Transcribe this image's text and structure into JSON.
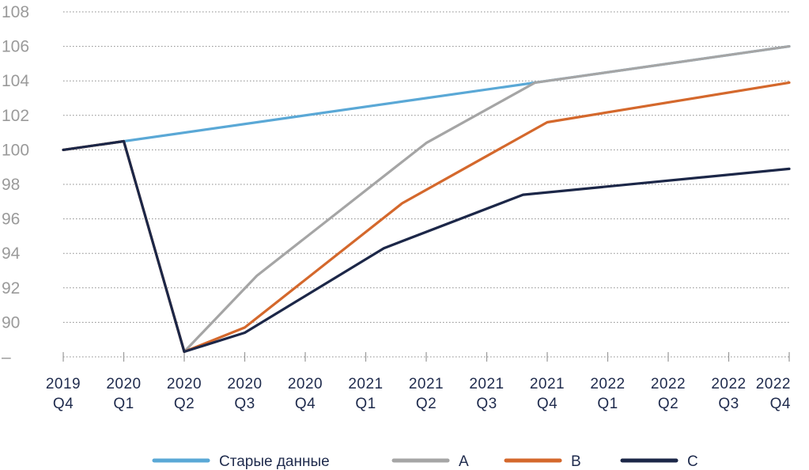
{
  "chart_data": {
    "type": "line",
    "title": "",
    "xlabel": "",
    "ylabel": "",
    "ylim": [
      88,
      108
    ],
    "y_ticks": [
      {
        "value": 108,
        "label": "108"
      },
      {
        "value": 106,
        "label": "106"
      },
      {
        "value": 104,
        "label": "104"
      },
      {
        "value": 102,
        "label": "102"
      },
      {
        "value": 100,
        "label": "100"
      },
      {
        "value": 98,
        "label": "98"
      },
      {
        "value": 96,
        "label": "96"
      },
      {
        "value": 94,
        "label": "94"
      },
      {
        "value": 92,
        "label": "92"
      },
      {
        "value": 90,
        "label": "90"
      },
      {
        "value": 88,
        "label": "–"
      }
    ],
    "categories": [
      {
        "year": "2019",
        "quarter": "Q4"
      },
      {
        "year": "2020",
        "quarter": "Q1"
      },
      {
        "year": "2020",
        "quarter": "Q2"
      },
      {
        "year": "2020",
        "quarter": "Q3"
      },
      {
        "year": "2020",
        "quarter": "Q4"
      },
      {
        "year": "2021",
        "quarter": "Q1"
      },
      {
        "year": "2021",
        "quarter": "Q2"
      },
      {
        "year": "2021",
        "quarter": "Q3"
      },
      {
        "year": "2021",
        "quarter": "Q4"
      },
      {
        "year": "2022",
        "quarter": "Q1"
      },
      {
        "year": "2022",
        "quarter": "Q2"
      },
      {
        "year": "2022",
        "quarter": "Q3"
      },
      {
        "year": "2022",
        "quarter": "Q4"
      }
    ],
    "grid": "horizontal dotted",
    "legend_position": "bottom",
    "series": [
      {
        "name": "Старые данные",
        "color": "#5aa8d6",
        "points": [
          [
            0,
            100
          ],
          [
            8,
            104
          ],
          [
            12,
            106
          ]
        ]
      },
      {
        "name": "A",
        "color": "#a5a5a5",
        "points": [
          [
            0,
            100
          ],
          [
            1,
            100.5
          ],
          [
            2,
            88.3
          ],
          [
            3.2,
            92.7
          ],
          [
            6,
            100.4
          ],
          [
            7.8,
            103.9
          ],
          [
            12,
            106
          ]
        ]
      },
      {
        "name": "B",
        "color": "#d4682c",
        "points": [
          [
            0,
            100
          ],
          [
            1,
            100.5
          ],
          [
            2,
            88.3
          ],
          [
            3,
            89.7
          ],
          [
            5.6,
            96.9
          ],
          [
            8,
            101.6
          ],
          [
            12,
            103.9
          ]
        ]
      },
      {
        "name": "C",
        "color": "#1c2748",
        "points": [
          [
            0,
            100
          ],
          [
            1,
            100.5
          ],
          [
            2,
            88.3
          ],
          [
            3,
            89.4
          ],
          [
            5.3,
            94.3
          ],
          [
            7.6,
            97.4
          ],
          [
            12,
            98.9
          ]
        ]
      }
    ]
  }
}
